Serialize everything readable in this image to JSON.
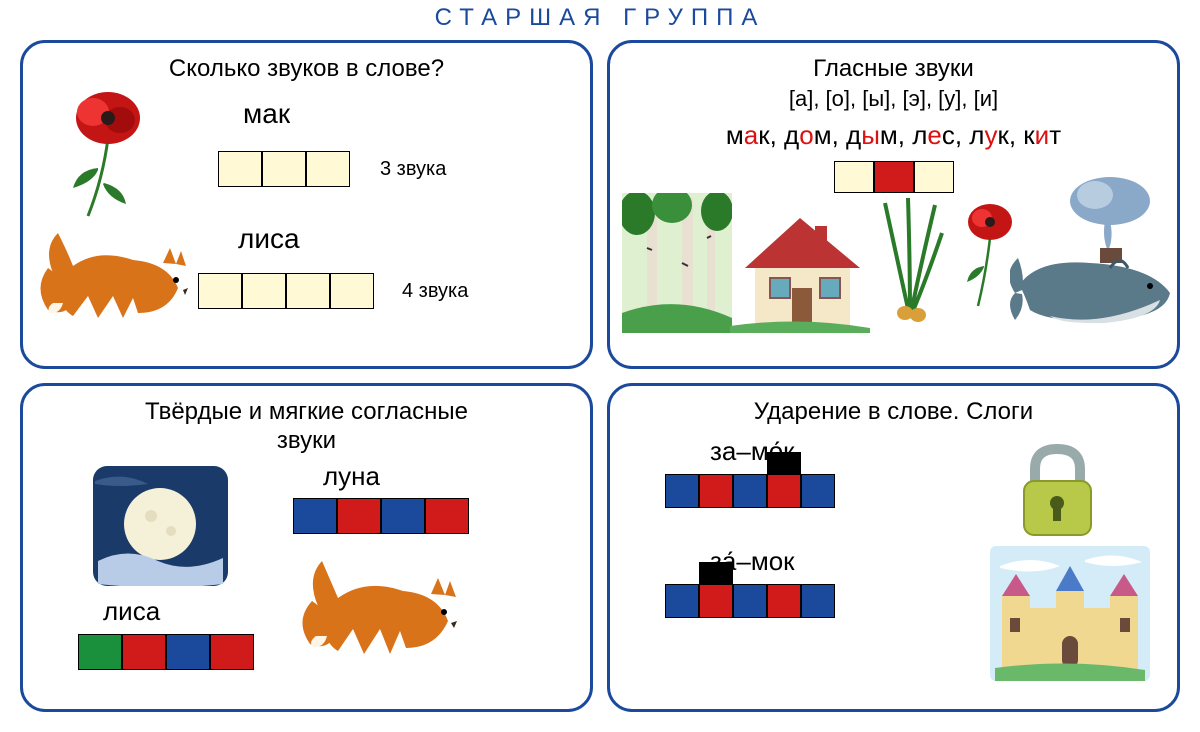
{
  "page_title": "СТАРШАЯ ГРУППА",
  "colors": {
    "border": "#1b4a9c",
    "cream": "#fff9d6",
    "red": "#d11a1a",
    "blue": "#1b4a9c",
    "green": "#1a8f3c",
    "black": "#000000"
  },
  "card1": {
    "title": "Сколько звуков в слове?",
    "word1": "мак",
    "word1_cells": [
      "cream",
      "cream",
      "cream"
    ],
    "word1_note": "3 звука",
    "word2": "лиса",
    "word2_cells": [
      "cream",
      "cream",
      "cream",
      "cream"
    ],
    "word2_note": "4 звука",
    "images": [
      "poppy",
      "fox"
    ]
  },
  "card2": {
    "title": "Гласные звуки",
    "subtitle": "[а], [о], [ы], [э], [у], [и]",
    "words": [
      {
        "pre": "м",
        "vowel": "а",
        "post": "к"
      },
      {
        "pre": "д",
        "vowel": "о",
        "post": "м"
      },
      {
        "pre": "д",
        "vowel": "ы",
        "post": "м"
      },
      {
        "pre": "л",
        "vowel": "е",
        "post": "с"
      },
      {
        "pre": "л",
        "vowel": "у",
        "post": "к"
      },
      {
        "pre": "к",
        "vowel": "и",
        "post": "т"
      }
    ],
    "cells": [
      "cream",
      "red",
      "cream"
    ],
    "images": [
      "forest",
      "house",
      "onion-sprout",
      "poppy",
      "whale",
      "smoke"
    ]
  },
  "card3": {
    "title_line1": "Твёрдые и мягкие согласные",
    "title_line2": "звуки",
    "wordA": "луна",
    "wordA_cells": [
      "blue",
      "red",
      "blue",
      "red"
    ],
    "wordB": "лиса",
    "wordB_cells": [
      "green",
      "red",
      "blue",
      "red"
    ],
    "images": [
      "moon",
      "fox"
    ]
  },
  "card4": {
    "title": "Ударение в слове. Слоги",
    "wordA": "за–мо́к",
    "wordA_cells": [
      "blue",
      "red",
      "blue",
      "red",
      "blue"
    ],
    "wordA_stress_index": 3,
    "wordB": "за́–мок",
    "wordB_cells": [
      "blue",
      "red",
      "blue",
      "red",
      "blue"
    ],
    "wordB_stress_index": 1,
    "images": [
      "padlock",
      "castle"
    ]
  }
}
